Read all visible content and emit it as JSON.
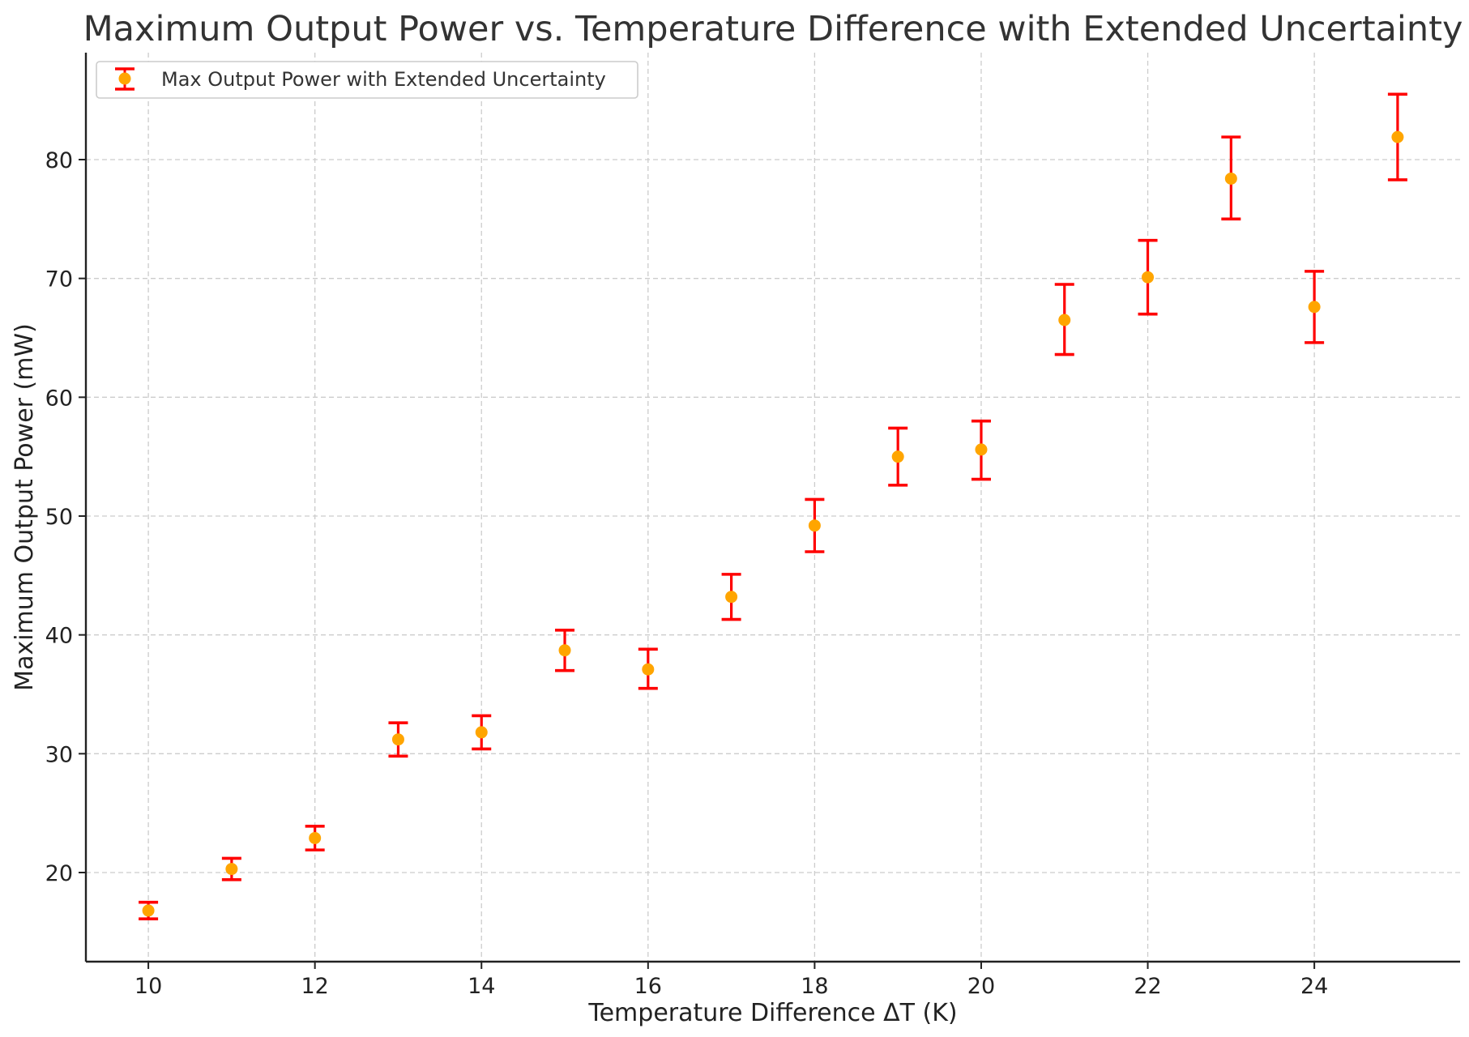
{
  "chart_data": {
    "type": "scatter",
    "title": "Maximum Output Power vs. Temperature Difference with Extended Uncertainty",
    "xlabel": "Temperature Difference ΔT (K)",
    "ylabel": "Maximum Output Power (mW)",
    "xlim": [
      9.25,
      25.75
    ],
    "ylim": [
      12.5,
      89
    ],
    "x_ticks": [
      10,
      12,
      14,
      16,
      18,
      20,
      22,
      24
    ],
    "y_ticks": [
      20,
      30,
      40,
      50,
      60,
      70,
      80
    ],
    "grid": true,
    "grid_style": "dashed",
    "legend_position": "upper-left",
    "series": [
      {
        "name": "Max Output Power with Extended Uncertainty",
        "marker_color": "#FFA500",
        "errorbar_color": "#FF0000",
        "x": [
          10,
          11,
          12,
          13,
          14,
          15,
          16,
          17,
          18,
          19,
          20,
          21,
          22,
          23,
          24,
          25
        ],
        "y": [
          16.8,
          20.3,
          22.9,
          31.2,
          31.8,
          38.7,
          37.1,
          43.2,
          49.2,
          55.0,
          55.6,
          66.5,
          70.1,
          78.4,
          67.6,
          81.9
        ],
        "yerr_low": [
          16.1,
          19.4,
          21.9,
          29.8,
          30.4,
          37.0,
          35.5,
          41.3,
          47.0,
          52.6,
          53.1,
          63.6,
          67.0,
          75.0,
          64.6,
          78.3
        ],
        "yerr_high": [
          17.5,
          21.2,
          23.9,
          32.6,
          33.2,
          40.4,
          38.8,
          45.1,
          51.4,
          57.4,
          58.0,
          69.5,
          73.2,
          81.9,
          70.6,
          85.5
        ]
      }
    ]
  }
}
